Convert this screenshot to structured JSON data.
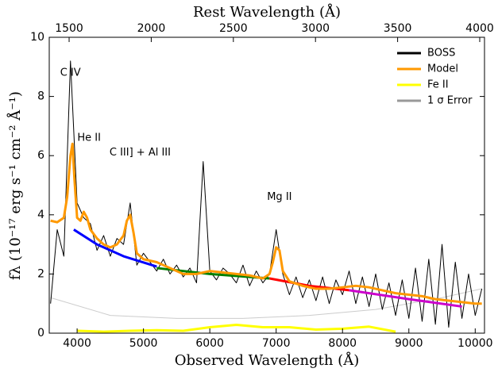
{
  "chart_data": {
    "type": "line",
    "x_label": "Observed Wavelength (Å)",
    "x2_label": "Rest Wavelength (Å)",
    "y_label": "fλ (10⁻¹⁷ erg s⁻¹ cm⁻² Å⁻¹)",
    "xlim": [
      3580,
      10140
    ],
    "xticks": [
      4000,
      5000,
      6000,
      7000,
      8000,
      9000,
      10000
    ],
    "x2lim": [
      1379,
      4029
    ],
    "x2ticks": [
      1500,
      2000,
      2500,
      3000,
      3500,
      4000
    ],
    "ylim": [
      0,
      10
    ],
    "yticks": [
      0,
      2,
      4,
      6,
      8,
      10
    ],
    "legend_position": "upper right",
    "series": [
      {
        "name": "BOSS",
        "color": "#000000",
        "x": [
          3600,
          3700,
          3800,
          3900,
          4000,
          4100,
          4200,
          4300,
          4400,
          4500,
          4600,
          4700,
          4800,
          4900,
          5000,
          5100,
          5200,
          5300,
          5400,
          5500,
          5600,
          5700,
          5800,
          5900,
          6000,
          6100,
          6200,
          6300,
          6400,
          6500,
          6600,
          6700,
          6800,
          6900,
          7000,
          7100,
          7200,
          7300,
          7400,
          7500,
          7600,
          7700,
          7800,
          7900,
          8000,
          8100,
          8200,
          8300,
          8400,
          8500,
          8600,
          8700,
          8800,
          8900,
          9000,
          9100,
          9200,
          9300,
          9400,
          9500,
          9600,
          9700,
          9800,
          9900,
          10000,
          10100
        ],
        "values": [
          1.0,
          3.5,
          2.6,
          9.2,
          4.4,
          3.9,
          3.7,
          2.8,
          3.3,
          2.6,
          3.2,
          3.0,
          4.4,
          2.3,
          2.7,
          2.4,
          2.1,
          2.5,
          2.0,
          2.3,
          1.9,
          2.2,
          1.7,
          5.8,
          2.1,
          1.8,
          2.2,
          2.0,
          1.7,
          2.3,
          1.6,
          2.1,
          1.7,
          2.0,
          3.5,
          2.0,
          1.3,
          1.9,
          1.2,
          1.8,
          1.1,
          1.9,
          1.0,
          1.8,
          1.3,
          2.1,
          1.0,
          1.9,
          0.9,
          2.0,
          0.8,
          1.7,
          0.6,
          1.8,
          0.5,
          2.2,
          0.4,
          2.5,
          0.3,
          3.0,
          0.2,
          2.4,
          0.5,
          2.0,
          0.6,
          1.5
        ]
      },
      {
        "name": "Model",
        "color": "#ff9900",
        "x": [
          3600,
          3700,
          3800,
          3850,
          3900,
          3930,
          3960,
          4000,
          4050,
          4100,
          4150,
          4200,
          4300,
          4400,
          4500,
          4600,
          4700,
          4750,
          4800,
          4850,
          4900,
          5000,
          5200,
          5400,
          5600,
          5800,
          6000,
          6200,
          6400,
          6600,
          6800,
          6900,
          6950,
          7000,
          7050,
          7100,
          7200,
          7400,
          7600,
          7800,
          8000,
          8200,
          8400,
          8600,
          8800,
          9000,
          9200,
          9400,
          9600,
          9800,
          10000,
          10100
        ],
        "values": [
          3.8,
          3.75,
          3.9,
          4.6,
          6.0,
          6.4,
          5.2,
          3.9,
          3.8,
          4.1,
          3.9,
          3.5,
          3.2,
          3.0,
          2.9,
          3.0,
          3.3,
          3.8,
          4.0,
          3.4,
          2.7,
          2.5,
          2.4,
          2.2,
          2.0,
          2.0,
          2.1,
          2.05,
          2.0,
          1.95,
          1.85,
          2.0,
          2.4,
          2.9,
          2.8,
          2.1,
          1.75,
          1.6,
          1.5,
          1.5,
          1.55,
          1.6,
          1.55,
          1.45,
          1.35,
          1.3,
          1.25,
          1.15,
          1.1,
          1.05,
          1.0,
          1.0
        ]
      },
      {
        "name": "Fe II",
        "color": "#ffff00",
        "x": [
          4000,
          4400,
          4800,
          5200,
          5600,
          6000,
          6400,
          6800,
          7200,
          7600,
          8000,
          8400,
          8800
        ],
        "values": [
          0.08,
          0.05,
          0.08,
          0.1,
          0.08,
          0.2,
          0.28,
          0.2,
          0.2,
          0.12,
          0.15,
          0.22,
          0.05
        ]
      },
      {
        "name": "1 σ Error",
        "color": "#999999",
        "x": [
          3600,
          4500,
          5500,
          6500,
          7500,
          8500,
          9500,
          10100
        ],
        "values": [
          1.2,
          0.6,
          0.5,
          0.5,
          0.6,
          0.8,
          1.2,
          1.5
        ]
      }
    ],
    "continuum": [
      {
        "color": "#0000ff",
        "x": [
          3950,
          4300,
          4700,
          5200
        ],
        "values": [
          3.5,
          3.0,
          2.6,
          2.25
        ]
      },
      {
        "color": "#008000",
        "x": [
          5200,
          6000,
          6900
        ],
        "values": [
          2.2,
          2.0,
          1.85
        ]
      },
      {
        "color": "#ff0000",
        "x": [
          6900,
          7500,
          8100
        ],
        "values": [
          1.85,
          1.6,
          1.45
        ]
      },
      {
        "color": "#cc00cc",
        "x": [
          8100,
          9000,
          9800
        ],
        "values": [
          1.45,
          1.15,
          0.9
        ]
      }
    ],
    "annotations": [
      {
        "text": "C IV",
        "x": 3900,
        "y": 8.8
      },
      {
        "text": "He II",
        "x": 4180,
        "y": 6.6
      },
      {
        "text": "C III] + Al III",
        "x": 4950,
        "y": 6.1
      },
      {
        "text": "Mg II",
        "x": 7050,
        "y": 4.6
      }
    ]
  }
}
